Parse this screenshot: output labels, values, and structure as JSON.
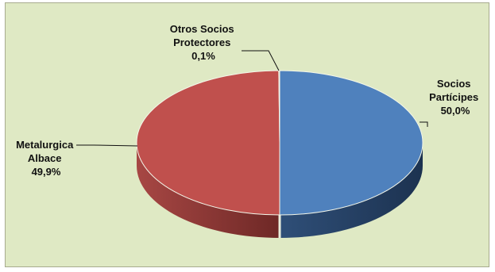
{
  "chart_data": {
    "type": "pie",
    "style": "3d",
    "title": "",
    "slices": [
      {
        "lines": [
          "Socios",
          "Partícipes",
          "50,0%"
        ],
        "value": 50.0,
        "color": "#4f81bd"
      },
      {
        "lines": [
          "Metalurgica",
          "Albace",
          "49,9%"
        ],
        "value": 49.9,
        "color": "#c0504d"
      },
      {
        "lines": [
          "Otros Socios",
          "Protectores",
          "0,1%"
        ],
        "value": 0.1,
        "color": "#9bbb59"
      }
    ],
    "background_color": "#dfe9c4",
    "legend": "none"
  }
}
